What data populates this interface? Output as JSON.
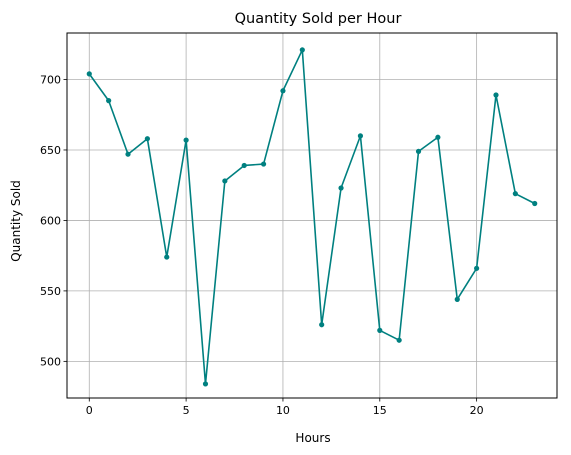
{
  "chart_data": {
    "type": "line",
    "title": "Quantity Sold per Hour",
    "xlabel": "Hours",
    "ylabel": "Quantity Sold",
    "xlim": [
      -1.15,
      24.15
    ],
    "ylim": [
      474,
      733
    ],
    "x_ticks": [
      0,
      5,
      10,
      15,
      20
    ],
    "y_ticks": [
      500,
      550,
      600,
      650,
      700
    ],
    "grid": true,
    "colors": {
      "line": "#008080",
      "grid": "#b0b0b0",
      "axes": "#000000"
    },
    "series": [
      {
        "x": [
          0,
          1,
          2,
          3,
          4,
          5,
          6,
          7,
          8,
          9,
          10,
          11,
          12,
          13,
          14,
          15,
          16,
          17,
          18,
          19,
          20,
          21,
          22,
          23
        ],
        "values": [
          704,
          685,
          647,
          658,
          574,
          657,
          484,
          628,
          639,
          640,
          692,
          721,
          526,
          623,
          660,
          522,
          515,
          649,
          659,
          544,
          566,
          689,
          619,
          612
        ]
      }
    ]
  }
}
